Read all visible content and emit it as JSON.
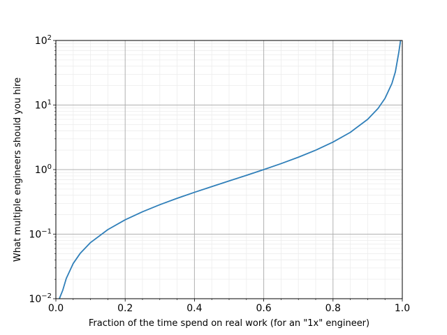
{
  "chart_data": {
    "type": "line",
    "title": "",
    "xlabel": "Fraction of the time spend on real work (for an \"1x\" engineer)",
    "ylabel": "What multiple engineers should you hire",
    "xlim": [
      0.0,
      1.0
    ],
    "ylim": [
      0.01,
      100
    ],
    "yscale": "log",
    "grid": {
      "major": true,
      "minor": true
    },
    "x_ticks": [
      "0.0",
      "0.2",
      "0.4",
      "0.6",
      "0.8",
      "1.0"
    ],
    "y_ticks": [
      {
        "base": "10",
        "exp": "−2"
      },
      {
        "base": "10",
        "exp": "−1"
      },
      {
        "base": "10",
        "exp": "0"
      },
      {
        "base": "10",
        "exp": "1"
      },
      {
        "base": "10",
        "exp": "2"
      }
    ],
    "series": [
      {
        "color": "#2f7fb9",
        "x": [
          0.01,
          0.02,
          0.03,
          0.05,
          0.07,
          0.1,
          0.15,
          0.2,
          0.25,
          0.3,
          0.35,
          0.4,
          0.45,
          0.5,
          0.55,
          0.6,
          0.65,
          0.7,
          0.75,
          0.8,
          0.85,
          0.9,
          0.93,
          0.95,
          0.97,
          0.98,
          0.99,
          0.995
        ],
        "y": [
          0.0068,
          0.0136,
          0.0206,
          0.0351,
          0.0502,
          0.0741,
          0.1176,
          0.1667,
          0.2222,
          0.2857,
          0.359,
          0.4444,
          0.5455,
          0.6667,
          0.8148,
          1.0,
          1.238,
          1.556,
          2.0,
          2.667,
          3.778,
          6.0,
          8.857,
          12.667,
          21.556,
          32.667,
          66.0,
          133.0
        ]
      }
    ]
  }
}
